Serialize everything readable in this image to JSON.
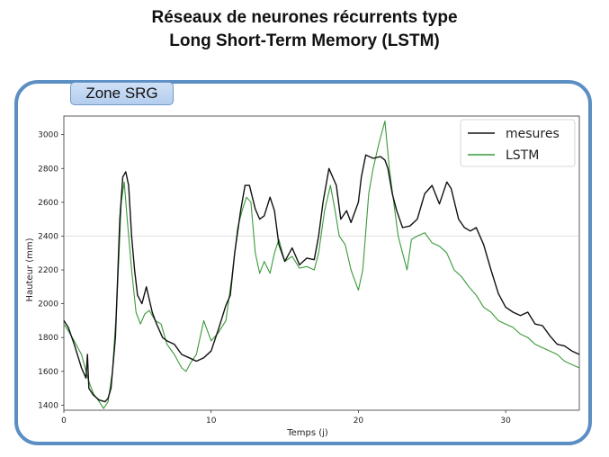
{
  "slide": {
    "title_line1": "Réseaux de neurones récurrents type",
    "title_line2": "Long Short-Term Memory (LSTM)",
    "zone_label": "Zone SRG",
    "border_color": "#5b8fc4"
  },
  "chart_data": {
    "type": "line",
    "title": "",
    "xlabel": "Temps (j)",
    "ylabel": "Hauteur (mm)",
    "xlim": [
      0,
      35
    ],
    "ylim": [
      1370,
      3110
    ],
    "xticks": [
      0,
      10,
      20,
      30
    ],
    "yticks": [
      1400,
      1600,
      1800,
      2000,
      2200,
      2400,
      2600,
      2800,
      3000
    ],
    "grid": "horizontal line at 2400 only",
    "legend_position": "top-right",
    "series": [
      {
        "name": "mesures",
        "color": "#111111",
        "x": [
          0,
          0.3,
          0.7,
          1.2,
          1.5,
          1.6,
          1.7,
          2,
          2.4,
          2.8,
          3.0,
          3.2,
          3.5,
          3.8,
          4.0,
          4.2,
          4.4,
          4.6,
          4.8,
          5.0,
          5.3,
          5.6,
          6.0,
          6.3,
          6.7,
          7.0,
          7.5,
          8.0,
          8.5,
          9.0,
          9.5,
          10.0,
          10.5,
          11.0,
          11.3,
          11.6,
          12.0,
          12.3,
          12.6,
          13.0,
          13.3,
          13.6,
          14.0,
          14.3,
          14.6,
          15.0,
          15.5,
          16.0,
          16.5,
          17.0,
          17.3,
          17.6,
          18.0,
          18.5,
          18.8,
          19.2,
          19.5,
          20.0,
          20.2,
          20.5,
          21.0,
          21.5,
          21.8,
          22.0,
          22.3,
          22.6,
          23.0,
          23.5,
          24.0,
          24.5,
          25.0,
          25.5,
          26.0,
          26.3,
          26.8,
          27.2,
          27.6,
          28.0,
          28.5,
          29.0,
          29.5,
          30.0,
          30.5,
          31.0,
          31.5,
          32.0,
          32.5,
          33.0,
          33.5,
          34.0,
          34.5,
          35.0
        ],
        "y": [
          1900,
          1860,
          1760,
          1620,
          1560,
          1700,
          1500,
          1460,
          1430,
          1420,
          1440,
          1500,
          1800,
          2500,
          2750,
          2780,
          2700,
          2400,
          2200,
          2050,
          2000,
          2100,
          1950,
          1880,
          1800,
          1780,
          1760,
          1700,
          1680,
          1660,
          1680,
          1720,
          1850,
          1990,
          2050,
          2300,
          2550,
          2700,
          2700,
          2560,
          2500,
          2520,
          2630,
          2550,
          2350,
          2250,
          2330,
          2230,
          2270,
          2260,
          2400,
          2600,
          2800,
          2700,
          2500,
          2550,
          2480,
          2600,
          2750,
          2880,
          2860,
          2870,
          2850,
          2800,
          2650,
          2550,
          2450,
          2460,
          2500,
          2650,
          2700,
          2590,
          2720,
          2680,
          2500,
          2450,
          2430,
          2450,
          2350,
          2200,
          2060,
          1980,
          1950,
          1930,
          1950,
          1880,
          1870,
          1810,
          1760,
          1750,
          1720,
          1700
        ]
      },
      {
        "name": "LSTM",
        "color": "#3a9a3a",
        "x": [
          0,
          0.3,
          0.7,
          1.2,
          1.5,
          1.7,
          2.0,
          2.4,
          2.7,
          3.0,
          3.3,
          3.6,
          3.9,
          4.1,
          4.3,
          4.6,
          4.9,
          5.2,
          5.5,
          5.8,
          6.2,
          6.6,
          7.0,
          7.5,
          8.0,
          8.3,
          8.6,
          9.0,
          9.5,
          10.0,
          10.5,
          11.0,
          11.4,
          11.8,
          12.1,
          12.4,
          12.7,
          13.0,
          13.3,
          13.6,
          14.0,
          14.3,
          14.6,
          15.0,
          15.5,
          16.0,
          16.5,
          17.0,
          17.3,
          17.7,
          18.1,
          18.4,
          18.7,
          19.1,
          19.5,
          20.0,
          20.3,
          20.7,
          21.0,
          21.4,
          21.8,
          22.1,
          22.4,
          22.7,
          23.0,
          23.3,
          23.6,
          24.0,
          24.5,
          25.0,
          25.5,
          26.0,
          26.5,
          27.0,
          27.5,
          28.0,
          28.5,
          29.0,
          29.5,
          30.0,
          30.5,
          31.0,
          31.5,
          32.0,
          32.5,
          33.0,
          33.5,
          34.0,
          34.5,
          35.0
        ],
        "y": [
          1880,
          1840,
          1780,
          1700,
          1600,
          1540,
          1470,
          1420,
          1380,
          1420,
          1600,
          2000,
          2600,
          2720,
          2500,
          2200,
          1950,
          1880,
          1940,
          1960,
          1900,
          1880,
          1760,
          1700,
          1620,
          1600,
          1650,
          1700,
          1900,
          1780,
          1830,
          1900,
          2150,
          2450,
          2550,
          2630,
          2600,
          2300,
          2180,
          2250,
          2180,
          2300,
          2380,
          2250,
          2280,
          2210,
          2220,
          2200,
          2300,
          2550,
          2700,
          2560,
          2400,
          2350,
          2200,
          2080,
          2200,
          2650,
          2800,
          2950,
          3080,
          2800,
          2600,
          2400,
          2300,
          2200,
          2380,
          2400,
          2420,
          2360,
          2340,
          2300,
          2200,
          2160,
          2100,
          2050,
          1980,
          1950,
          1900,
          1880,
          1860,
          1820,
          1800,
          1760,
          1740,
          1720,
          1700,
          1660,
          1640,
          1620
        ]
      }
    ]
  }
}
